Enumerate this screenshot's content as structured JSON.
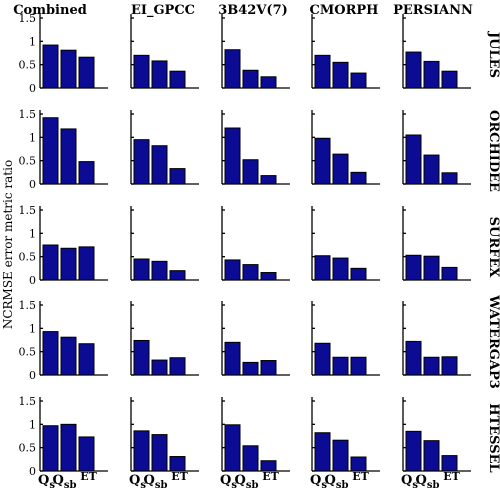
{
  "chart_data": {
    "type": "bar",
    "ylabel": "NCRMSE error metric ratio",
    "columns": [
      "Combined",
      "EI_GPCC",
      "3B42V(7)",
      "CMORPH",
      "PERSIANN"
    ],
    "rows": [
      "JULES",
      "ORCHIDEE",
      "SURFEX",
      "WATERGAP3",
      "HTESSEL"
    ],
    "categories": [
      "Q_s",
      "Q_sb",
      "ET"
    ],
    "x_tick_labels": [
      {
        "base": "Q",
        "sub": "s",
        "sup": ""
      },
      {
        "base": "Q",
        "sub": "sb",
        "sup": ""
      },
      {
        "base": "",
        "sub": "",
        "sup": "ET"
      }
    ],
    "ylim": [
      0,
      1.5
    ],
    "yticks": [
      0,
      0.5,
      1,
      1.5
    ],
    "ytick_labels": [
      "0",
      "0.5",
      "1",
      "1.5"
    ],
    "bar_color": "#0b0b94",
    "panels": [
      [
        [
          0.92,
          0.81,
          0.66
        ],
        [
          0.7,
          0.58,
          0.36
        ],
        [
          0.82,
          0.38,
          0.24
        ],
        [
          0.7,
          0.55,
          0.32
        ],
        [
          0.77,
          0.57,
          0.36
        ]
      ],
      [
        [
          1.42,
          1.18,
          0.48
        ],
        [
          0.95,
          0.82,
          0.33
        ],
        [
          1.2,
          0.52,
          0.18
        ],
        [
          0.98,
          0.64,
          0.25
        ],
        [
          1.05,
          0.62,
          0.24
        ]
      ],
      [
        [
          0.75,
          0.68,
          0.71
        ],
        [
          0.45,
          0.4,
          0.2
        ],
        [
          0.43,
          0.33,
          0.16
        ],
        [
          0.52,
          0.47,
          0.25
        ],
        [
          0.53,
          0.51,
          0.27
        ]
      ],
      [
        [
          0.93,
          0.81,
          0.67
        ],
        [
          0.74,
          0.32,
          0.37
        ],
        [
          0.7,
          0.27,
          0.31
        ],
        [
          0.68,
          0.38,
          0.38
        ],
        [
          0.72,
          0.38,
          0.39
        ]
      ],
      [
        [
          0.97,
          1.0,
          0.73
        ],
        [
          0.86,
          0.78,
          0.31
        ],
        [
          0.99,
          0.54,
          0.22
        ],
        [
          0.82,
          0.66,
          0.3
        ],
        [
          0.85,
          0.65,
          0.33
        ]
      ]
    ]
  }
}
